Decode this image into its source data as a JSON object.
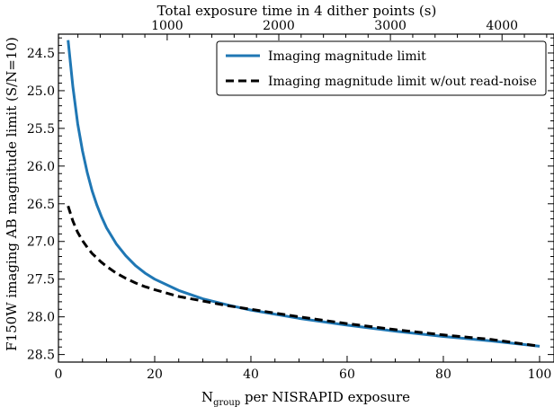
{
  "chart_data": {
    "type": "line",
    "xlabel_main": "N",
    "xlabel_sub": "group",
    "xlabel_rest": " per NISRAPID exposure",
    "ylabel": "F150W imaging AB magnitude limit (S/N=10)",
    "top_xlabel": "Total exposure time in 4 dither points (s)",
    "xlim": [
      0,
      103
    ],
    "ylim": [
      28.6,
      24.25
    ],
    "y_inverted": true,
    "xticks": [
      0,
      20,
      40,
      60,
      80,
      100
    ],
    "xtick_labels": [
      "0",
      "20",
      "40",
      "60",
      "80",
      "100"
    ],
    "yticks": [
      24.5,
      25.0,
      25.5,
      26.0,
      26.5,
      27.0,
      27.5,
      28.0,
      28.5
    ],
    "ytick_labels": [
      "24.5",
      "25.0",
      "25.5",
      "26.0",
      "26.5",
      "27.0",
      "27.5",
      "28.0",
      "28.5"
    ],
    "top_xticks_ngroup": [
      22.6,
      45.8,
      69.0,
      92.2
    ],
    "top_xtick_labels": [
      "1000",
      "2000",
      "3000",
      "4000"
    ],
    "grid": false,
    "legend_position": "top-right",
    "series": [
      {
        "name": "Imaging magnitude limit",
        "color": "#1f77b4",
        "style": "solid",
        "x": [
          2,
          3,
          4,
          5,
          6,
          7,
          8,
          9,
          10,
          12,
          14,
          16,
          18,
          20,
          25,
          30,
          35,
          40,
          50,
          60,
          70,
          80,
          90,
          100
        ],
        "y": [
          24.33,
          24.95,
          25.44,
          25.8,
          26.09,
          26.33,
          26.52,
          26.68,
          26.82,
          27.03,
          27.19,
          27.32,
          27.42,
          27.5,
          27.65,
          27.76,
          27.84,
          27.91,
          28.02,
          28.11,
          28.19,
          28.26,
          28.32,
          28.39
        ]
      },
      {
        "name": "Imaging magnitude limit w/out read-noise",
        "color": "#000000",
        "style": "dashed",
        "x": [
          2,
          3,
          4,
          5,
          6,
          7,
          8,
          9,
          10,
          12,
          14,
          16,
          18,
          20,
          25,
          30,
          35,
          40,
          50,
          60,
          70,
          80,
          90,
          100
        ],
        "y": [
          26.53,
          26.73,
          26.88,
          26.99,
          27.08,
          27.16,
          27.22,
          27.28,
          27.33,
          27.42,
          27.49,
          27.55,
          27.6,
          27.64,
          27.73,
          27.79,
          27.85,
          27.9,
          28.0,
          28.09,
          28.17,
          28.24,
          28.3,
          28.39
        ]
      }
    ]
  }
}
